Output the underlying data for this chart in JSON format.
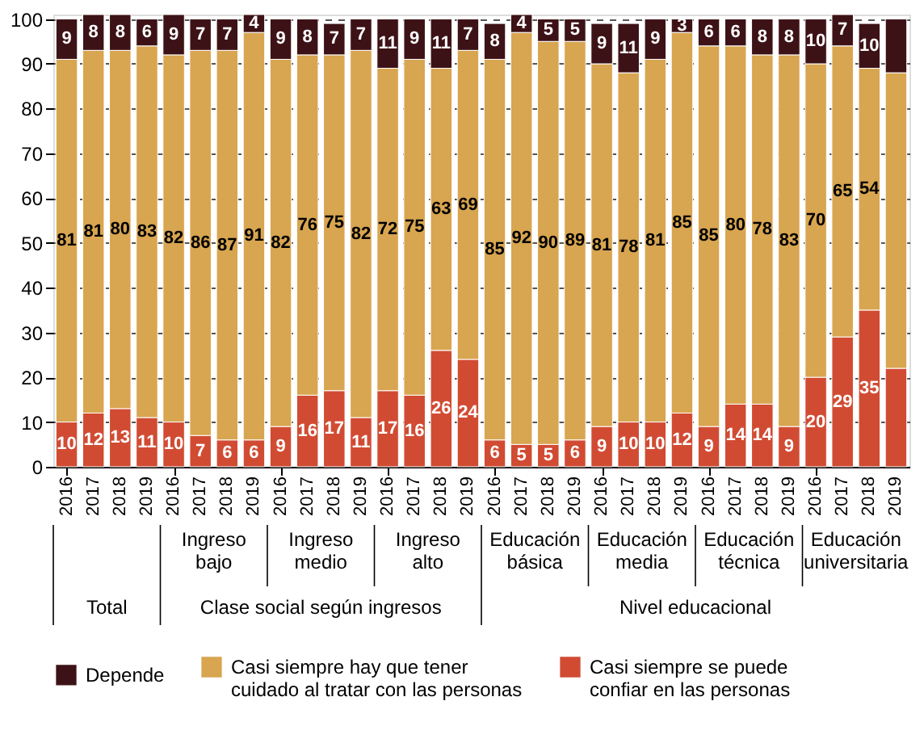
{
  "chart_data": {
    "type": "bar",
    "stacked": true,
    "categories": [
      "2016",
      "2017",
      "2018",
      "2019",
      "2016",
      "2017",
      "2018",
      "2019",
      "2016",
      "2017",
      "2018",
      "2019",
      "2016",
      "2017",
      "2018",
      "2019",
      "2016",
      "2017",
      "2018",
      "2019",
      "2016",
      "2017",
      "2018",
      "2019",
      "2016",
      "2017",
      "2018",
      "2019",
      "2016",
      "2017",
      "2018",
      "2019"
    ],
    "series": [
      {
        "name": "Casi siempre se puede confiar en las personas",
        "color": "#d14b33",
        "values": [
          10,
          12,
          13,
          11,
          10,
          7,
          6,
          6,
          9,
          16,
          17,
          11,
          17,
          16,
          26,
          24,
          6,
          5,
          5,
          6,
          9,
          10,
          10,
          12,
          9,
          14,
          14,
          9,
          20,
          29,
          35,
          22
        ],
        "value_labels": [
          "10",
          "12",
          "13",
          "11",
          "10",
          "7",
          "6",
          "6",
          "9",
          "16",
          "17",
          "11",
          "17",
          "16",
          "26",
          "24",
          "6",
          "5",
          "5",
          "6",
          "9",
          "10",
          "10",
          "12",
          "9",
          "14",
          "14",
          "9",
          "20",
          "29",
          "35",
          null
        ]
      },
      {
        "name": "Casi siempre hay que tener cuidado al tratar con las personas",
        "color": "#d8a550",
        "values": [
          81,
          81,
          80,
          83,
          82,
          86,
          87,
          91,
          82,
          76,
          75,
          82,
          72,
          75,
          63,
          69,
          85,
          92,
          90,
          89,
          81,
          78,
          81,
          85,
          85,
          80,
          78,
          83,
          70,
          65,
          54,
          66
        ],
        "value_labels": [
          "81",
          "81",
          "80",
          "83",
          "82",
          "86",
          "87",
          "91",
          "82",
          "76",
          "75",
          "82",
          "72",
          "75",
          "63",
          "69",
          "85",
          "92",
          "90",
          "89",
          "81",
          "78",
          "81",
          "85",
          "85",
          "80",
          "78",
          "83",
          "70",
          "65",
          "54",
          null
        ]
      },
      {
        "name": "Depende",
        "color": "#3d1216",
        "values": [
          9,
          8,
          8,
          6,
          9,
          7,
          7,
          4,
          9,
          8,
          7,
          7,
          11,
          9,
          11,
          7,
          8,
          4,
          5,
          5,
          9,
          11,
          9,
          3,
          6,
          6,
          8,
          8,
          10,
          7,
          10,
          12
        ],
        "value_labels": [
          "9",
          "8",
          "8",
          "6",
          "9",
          "7",
          "7",
          "4",
          "9",
          "8",
          "7",
          "7",
          "11",
          "9",
          "11",
          "7",
          "8",
          "4",
          "5",
          "5",
          "9",
          "11",
          "9",
          "3",
          "6",
          "6",
          "8",
          "8",
          "10",
          "7",
          "10",
          null
        ]
      }
    ],
    "ylim": [
      0,
      101
    ],
    "yticks": [
      0,
      10,
      20,
      30,
      40,
      50,
      60,
      70,
      80,
      90,
      100
    ],
    "grid": "y",
    "legend": "bottom",
    "annotations": [
      "Ingreso bajo",
      "Ingreso medio",
      "Ingreso alto",
      "Educación básica",
      "Educación media",
      "Educación técnica",
      "Educación universitaria",
      "Total",
      "Clase social según ingresos",
      "Nivel educacional"
    ]
  }
}
